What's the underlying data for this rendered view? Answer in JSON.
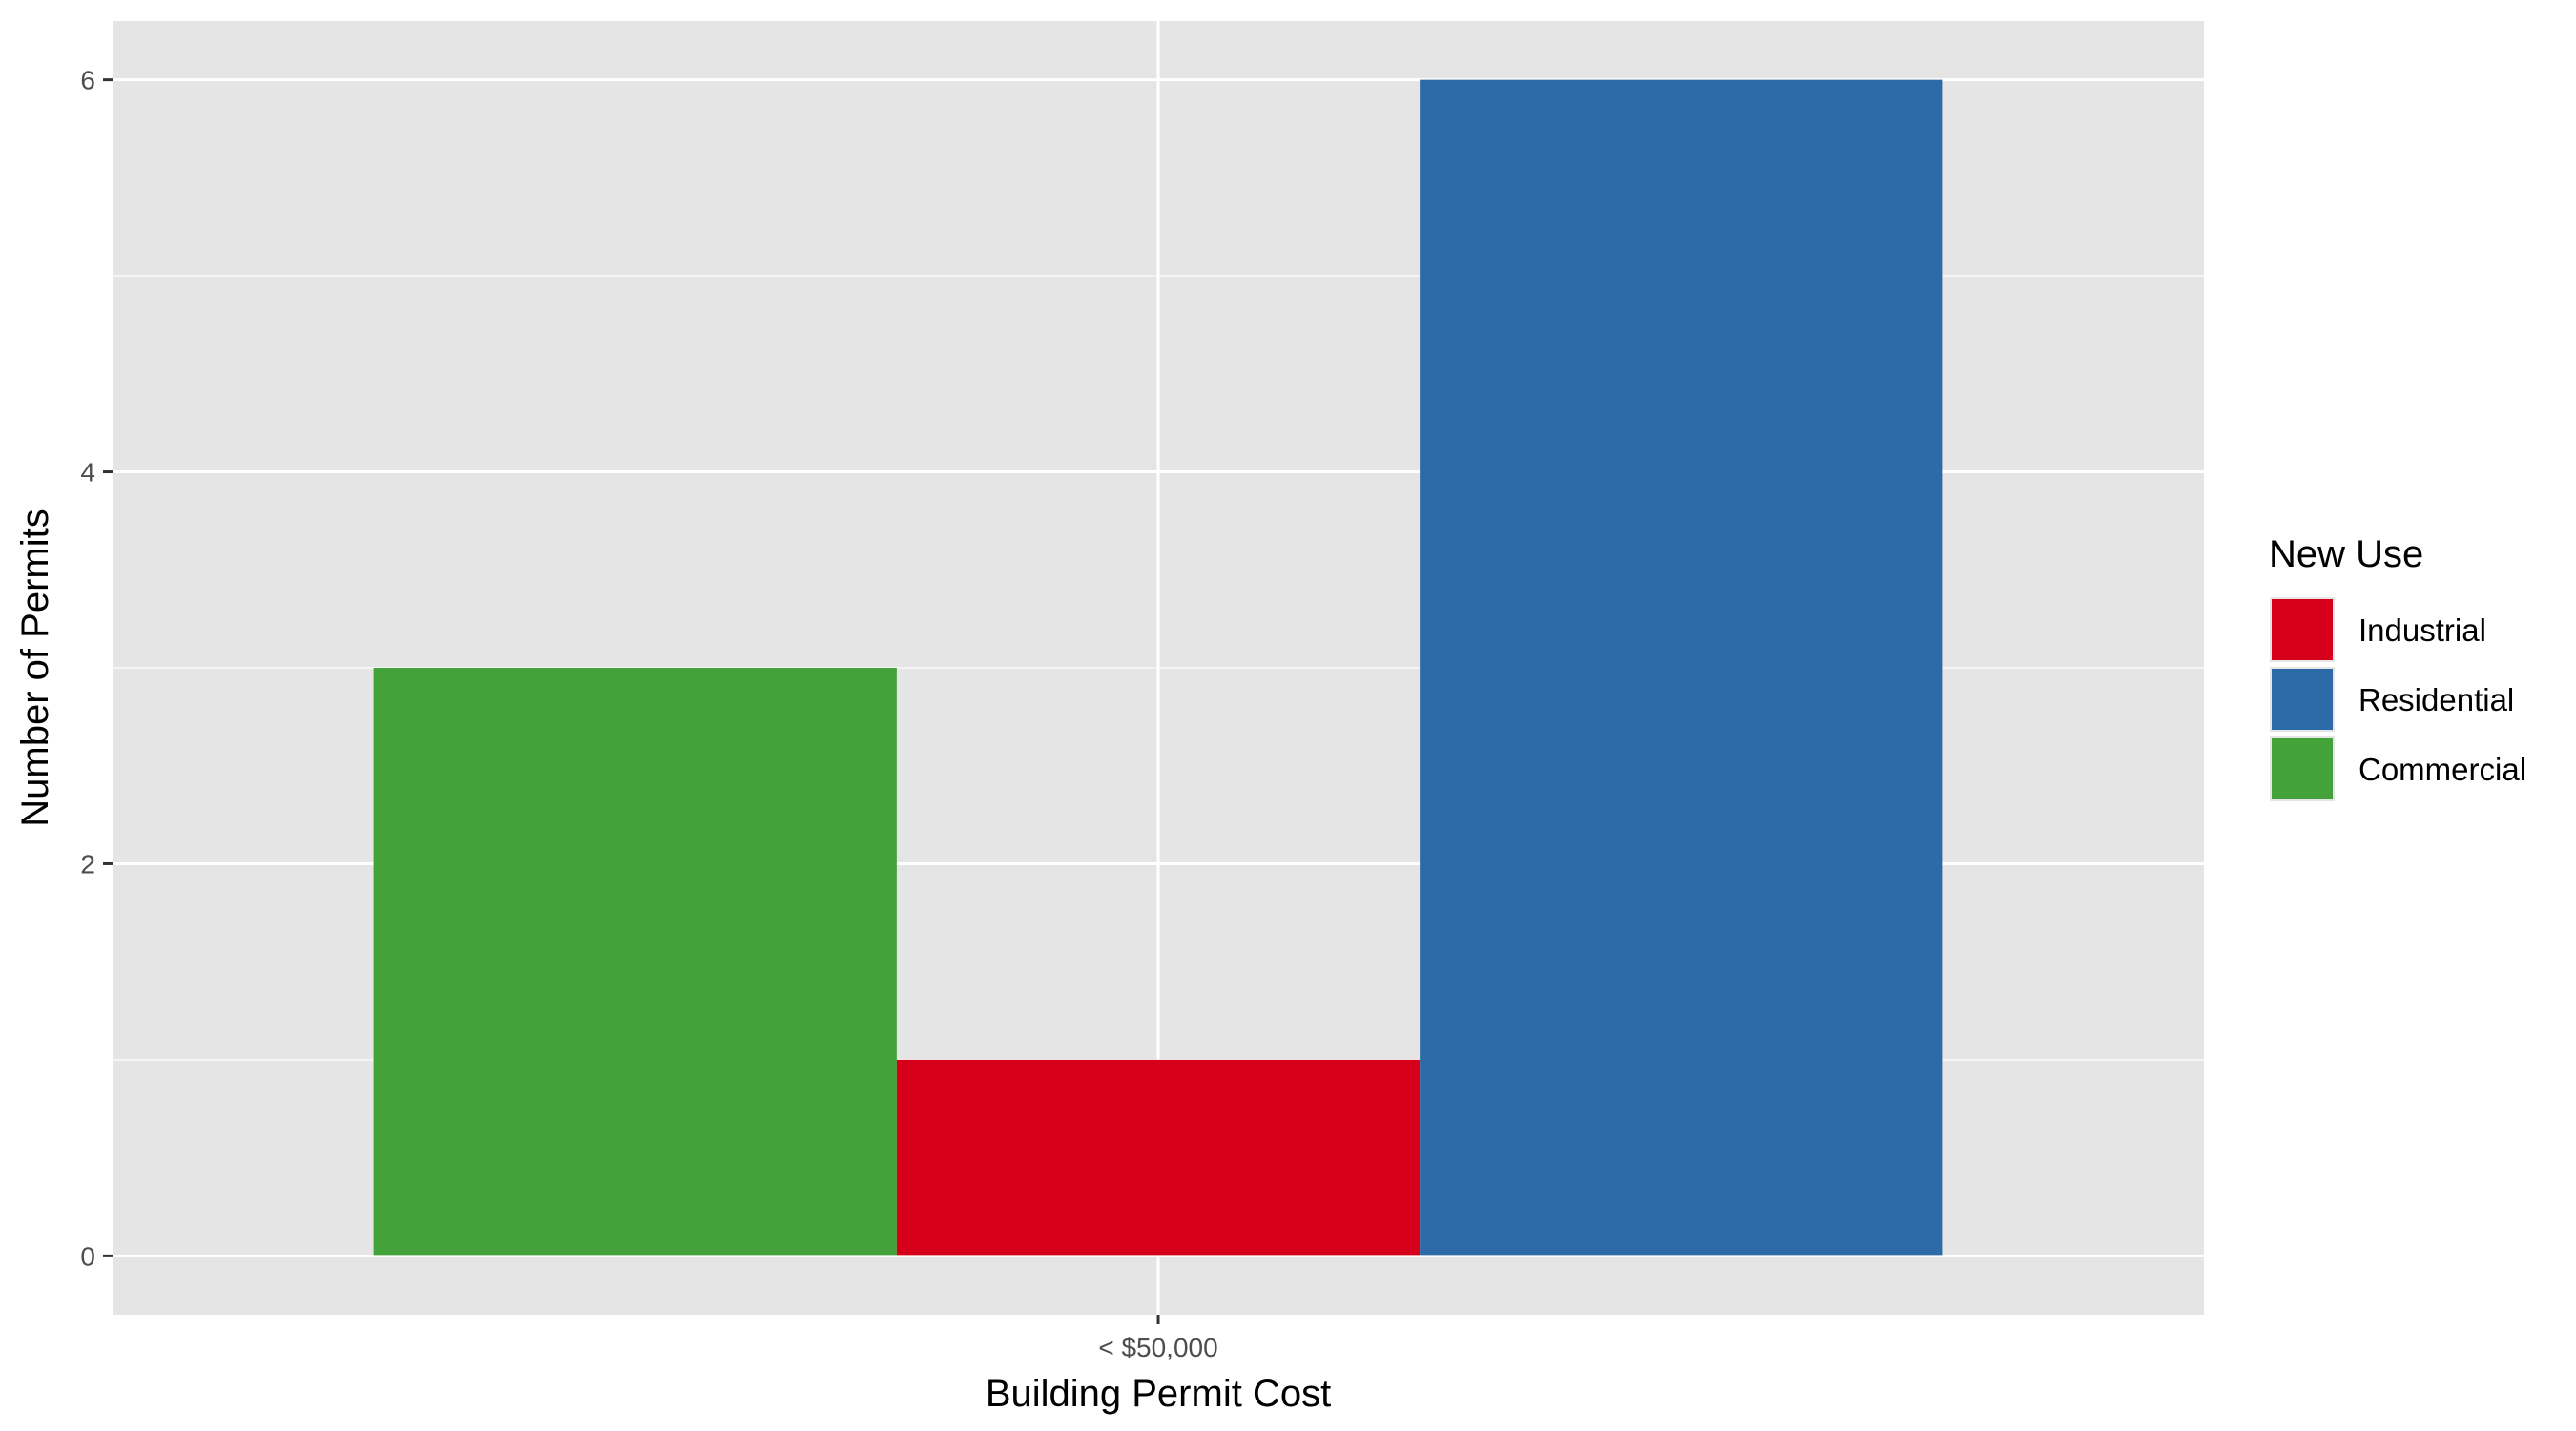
{
  "chart_data": {
    "type": "bar",
    "categories": [
      "< $50,000"
    ],
    "xlabel": "Building Permit Cost",
    "ylabel": "Number of Permits",
    "ylim": [
      -0.3,
      6.3
    ],
    "yticks": [
      0,
      2,
      4,
      6
    ],
    "grid": true,
    "legend": {
      "title": "New Use",
      "placement": "right",
      "entries": [
        {
          "name": "Industrial",
          "color": "#D7001A"
        },
        {
          "name": "Residential",
          "color": "#2C6AA8"
        },
        {
          "name": "Commercial",
          "color": "#43A23A"
        }
      ]
    },
    "bars": [
      {
        "category": "< $50,000",
        "series": "Commercial",
        "value": 3,
        "color": "#43A23A"
      },
      {
        "category": "< $50,000",
        "series": "Industrial",
        "value": 1,
        "color": "#D7001A"
      },
      {
        "category": "< $50,000",
        "series": "Residential",
        "value": 6,
        "color": "#2C6AA8"
      }
    ]
  },
  "colors": {
    "panel_background": "#E5E5E5",
    "grid_major": "#FFFFFF",
    "grid_minor": "#F2F2F2"
  }
}
